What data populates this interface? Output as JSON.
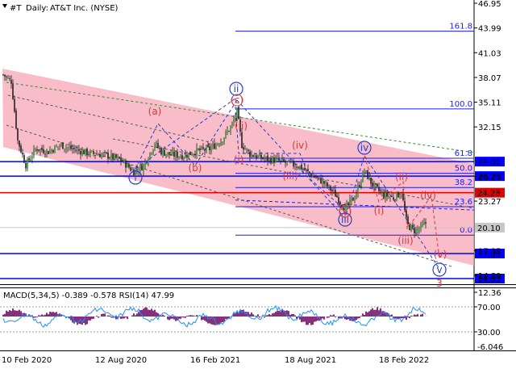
{
  "header": {
    "symbol": "#T",
    "timeframe": "Daily:",
    "instrument": "AT&T Inc. (NYSE)"
  },
  "chart_data": {
    "type": "candlestick",
    "price_axis": {
      "range": [
        12.36,
        46.95
      ],
      "ticks": [
        "46.95",
        "43.99",
        "41.03",
        "38.07",
        "35.11",
        "32.15",
        "26.23",
        "23.27",
        "17.35",
        "14.39",
        "12.36"
      ]
    },
    "x_axis": {
      "labels": [
        "10 Feb 2020",
        "12 Aug 2020",
        "16 Feb 2021",
        "18 Aug 2021",
        "18 Feb 2022"
      ]
    },
    "price_labels": [
      {
        "value": "28.00",
        "color": "#0000ff"
      },
      {
        "value": "26.26",
        "color": "#0000ff"
      },
      {
        "value": "24.28",
        "color": "#e60000"
      },
      {
        "value": "20.10",
        "color": "#c8c8c8"
      },
      {
        "value": "17.00",
        "color": "#0000ff"
      },
      {
        "value": "14.00",
        "color": "#0000ff"
      }
    ],
    "fibonacci": [
      {
        "level": "161.8",
        "price": 43.6
      },
      {
        "level": "100.0",
        "price": 34.3
      },
      {
        "level": "61.8",
        "price": 28.4
      },
      {
        "level": "50.0",
        "price": 26.6
      },
      {
        "level": "38.2",
        "price": 24.9
      },
      {
        "level": "23.6",
        "price": 22.6
      },
      {
        "level": "0.0",
        "price": 19.2
      }
    ],
    "wave_labels_blue": [
      "ii",
      "i",
      "iv",
      "iii",
      "v"
    ],
    "wave_labels_red": [
      "(a)",
      "(b)",
      "(c)",
      "(ii)",
      "(i)",
      "(iv)",
      "(iii)",
      "(v)",
      "(i)",
      "(ii)",
      "(iii)",
      "(iv)",
      "(v)",
      "3"
    ],
    "indicator": {
      "label": "MACD(5,34,5) -0.389 -0.578 RSI(14) 47.99",
      "ticks": [
        "70.00",
        "30.00",
        "-6.046"
      ]
    }
  }
}
